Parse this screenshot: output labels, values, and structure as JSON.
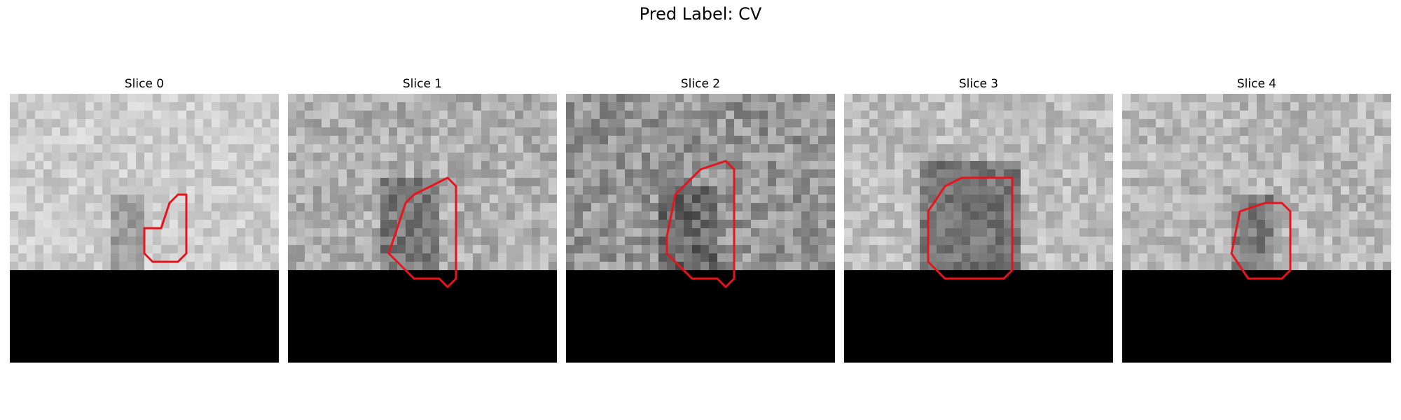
{
  "figure": {
    "title": "Pred Label: CV"
  },
  "colors": {
    "contour": "#e8141c",
    "background_fill": "#000000"
  },
  "slices": [
    {
      "title": "Slice 0",
      "mean_gray": 205,
      "variance": 22,
      "dark_region_gray": 150,
      "dark_region": [
        [
          12,
          15
        ],
        [
          12,
          30
        ]
      ],
      "contour": [
        [
          18,
          16
        ],
        [
          19,
          13
        ],
        [
          20,
          12
        ],
        [
          21,
          12
        ],
        [
          21,
          19
        ],
        [
          20,
          20
        ],
        [
          17,
          20
        ],
        [
          16,
          19
        ],
        [
          16,
          16
        ]
      ]
    },
    {
      "title": "Slice 1",
      "mean_gray": 175,
      "variance": 32,
      "dark_region_gray": 110,
      "dark_region": [
        [
          11,
          17
        ],
        [
          10,
          30
        ]
      ],
      "contour": [
        [
          14,
          13
        ],
        [
          15,
          12
        ],
        [
          17,
          11
        ],
        [
          19,
          10
        ],
        [
          20,
          11
        ],
        [
          20,
          22
        ],
        [
          19,
          23
        ],
        [
          18,
          22
        ],
        [
          15,
          22
        ],
        [
          13,
          20
        ],
        [
          12,
          19
        ],
        [
          13,
          16
        ]
      ]
    },
    {
      "title": "Slice 2",
      "mean_gray": 150,
      "variance": 38,
      "dark_region_gray": 95,
      "dark_region": [
        [
          11,
          17
        ],
        [
          11,
          30
        ]
      ],
      "contour": [
        [
          13,
          12
        ],
        [
          15,
          10
        ],
        [
          16,
          9
        ],
        [
          19,
          8
        ],
        [
          20,
          9
        ],
        [
          20,
          22
        ],
        [
          19,
          23
        ],
        [
          18,
          22
        ],
        [
          15,
          22
        ],
        [
          13,
          20
        ],
        [
          12,
          19
        ],
        [
          12,
          17
        ]
      ]
    },
    {
      "title": "Slice 3",
      "mean_gray": 190,
      "variance": 28,
      "dark_region_gray": 105,
      "dark_region": [
        [
          9,
          20
        ],
        [
          8,
          30
        ]
      ],
      "contour": [
        [
          10,
          14
        ],
        [
          12,
          11
        ],
        [
          14,
          10
        ],
        [
          20,
          10
        ],
        [
          20,
          21
        ],
        [
          19,
          22
        ],
        [
          12,
          22
        ],
        [
          10,
          20
        ]
      ]
    },
    {
      "title": "Slice 4",
      "mean_gray": 185,
      "variance": 30,
      "dark_region_gray": 115,
      "dark_region": [
        [
          13,
          17
        ],
        [
          12,
          30
        ]
      ],
      "contour": [
        [
          14,
          14
        ],
        [
          17,
          13
        ],
        [
          19,
          13
        ],
        [
          20,
          14
        ],
        [
          20,
          21
        ],
        [
          19,
          22
        ],
        [
          15,
          22
        ],
        [
          13,
          19
        ]
      ]
    }
  ]
}
